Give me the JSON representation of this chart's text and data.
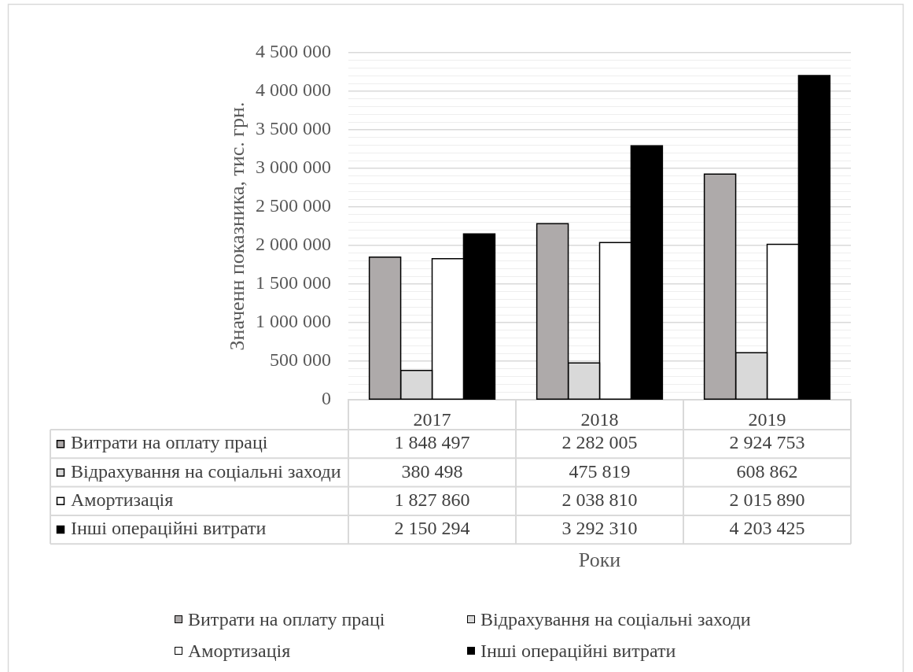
{
  "chart_data": {
    "type": "bar",
    "ylabel": "Значенн показника, тис. грн.",
    "categories": [
      "2017",
      "2018",
      "2019"
    ],
    "series": [
      {
        "name": "Витрати на оплату праці",
        "color": "#aeaaaa",
        "values": [
          1848497,
          2282005,
          2924753
        ],
        "value_labels": [
          "1 848 497",
          "2 282 005",
          "2 924 753"
        ]
      },
      {
        "name": "Відрахування на соціальні заходи",
        "color": "#d9d9d9",
        "values": [
          380498,
          475819,
          608862
        ],
        "value_labels": [
          "380 498",
          "475 819",
          "608 862"
        ]
      },
      {
        "name": "Амортизація",
        "color": "#ffffff",
        "values": [
          1827860,
          2038810,
          2015890
        ],
        "value_labels": [
          "1 827 860",
          "2 038 810",
          "2 015 890"
        ]
      },
      {
        "name": "Інші операційні витрати",
        "color": "#000000",
        "values": [
          2150294,
          3292310,
          4203425
        ],
        "value_labels": [
          "2 150 294",
          "3 292 310",
          "4 203 425"
        ]
      }
    ],
    "annotations": [
      "Роки"
    ],
    "ylim": [
      0,
      4500000
    ],
    "yticks": [
      0,
      {
        "value": 100000,
        "label": null
      },
      {
        "value": 200000,
        "label": null
      },
      {
        "value": 300000,
        "label": null
      },
      {
        "value": 400000,
        "label": null
      },
      {
        "value": 500000,
        "label": "500 000"
      },
      {
        "value": 600000,
        "label": null
      },
      {
        "value": 700000,
        "label": null
      },
      {
        "value": 800000,
        "label": null
      },
      {
        "value": 900000,
        "label": null
      },
      {
        "value": 1000000,
        "label": "1 000 000"
      },
      {
        "value": 1100000,
        "label": null
      },
      {
        "value": 1200000,
        "label": null
      },
      {
        "value": 1300000,
        "label": null
      },
      {
        "value": 1400000,
        "label": null
      },
      {
        "value": 1500000,
        "label": "1 500 000"
      },
      {
        "value": 1600000,
        "label": null
      },
      {
        "value": 1700000,
        "label": null
      },
      {
        "value": 1800000,
        "label": null
      },
      {
        "value": 1900000,
        "label": null
      },
      {
        "value": 2000000,
        "label": "2 000 000"
      },
      {
        "value": 2100000,
        "label": null
      },
      {
        "value": 2200000,
        "label": null
      },
      {
        "value": 2300000,
        "label": null
      },
      {
        "value": 2400000,
        "label": null
      },
      {
        "value": 2500000,
        "label": "2 500 000"
      },
      {
        "value": 2600000,
        "label": null
      },
      {
        "value": 2700000,
        "label": null
      },
      {
        "value": 2800000,
        "label": null
      },
      {
        "value": 2900000,
        "label": null
      },
      {
        "value": 3000000,
        "label": "3 000 000"
      },
      {
        "value": 3100000,
        "label": null
      },
      {
        "value": 3200000,
        "label": null
      },
      {
        "value": 3300000,
        "label": null
      },
      {
        "value": 3400000,
        "label": null
      },
      {
        "value": 3500000,
        "label": "3 500 000"
      },
      {
        "value": 3600000,
        "label": null
      },
      {
        "value": 3700000,
        "label": null
      },
      {
        "value": 3800000,
        "label": null
      },
      {
        "value": 3900000,
        "label": null
      },
      {
        "value": 4000000,
        "label": "4 000 000"
      },
      {
        "value": 4100000,
        "label": null
      },
      {
        "value": 4200000,
        "label": null
      },
      {
        "value": 4300000,
        "label": null
      },
      {
        "value": 4400000,
        "label": null
      },
      {
        "value": 4500000,
        "label": "4 500 000"
      }
    ],
    "grid": "y",
    "legend": "bottom"
  }
}
